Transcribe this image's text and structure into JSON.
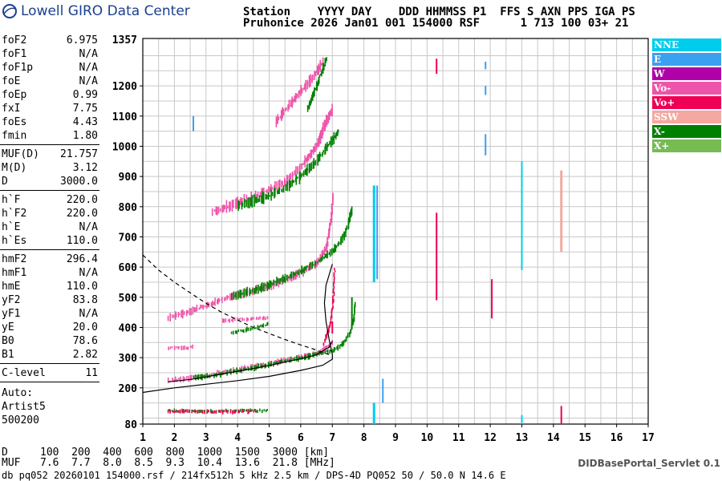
{
  "header": {
    "logo_text": "Lowell GIRO Data Center",
    "line1": "Station    YYYY DAY    DDD HHMMSS P1  FFS S AXN PPS IGA PS",
    "line2": "Pruhonice 2026 Jan01 001 154000 RSF      1 713 100 03+ 21"
  },
  "params_groups": [
    [
      {
        "label": "foF2",
        "value": "6.975"
      },
      {
        "label": "foF1",
        "value": "N/A"
      },
      {
        "label": "foF1p",
        "value": "N/A"
      },
      {
        "label": "foE",
        "value": "N/A"
      },
      {
        "label": "foEp",
        "value": "0.99"
      },
      {
        "label": "fxI",
        "value": "7.75"
      },
      {
        "label": "foEs",
        "value": "4.43"
      },
      {
        "label": "fmin",
        "value": "1.80"
      }
    ],
    [
      {
        "label": "MUF(D)",
        "value": "21.757"
      },
      {
        "label": "M(D)",
        "value": "3.12"
      },
      {
        "label": "D",
        "value": "3000.0"
      }
    ],
    [
      {
        "label": "h`F",
        "value": "220.0"
      },
      {
        "label": "h`F2",
        "value": "220.0"
      },
      {
        "label": "h`E",
        "value": "N/A"
      },
      {
        "label": "h`Es",
        "value": "110.0"
      }
    ],
    [
      {
        "label": "hmF2",
        "value": "296.4"
      },
      {
        "label": "hmF1",
        "value": "N/A"
      },
      {
        "label": "hmE",
        "value": "110.0"
      },
      {
        "label": "yF2",
        "value": "83.8"
      },
      {
        "label": "yF1",
        "value": "N/A"
      },
      {
        "label": "yE",
        "value": "20.0"
      },
      {
        "label": "B0",
        "value": "78.6"
      },
      {
        "label": "B1",
        "value": "2.82"
      }
    ],
    [
      {
        "label": "C-level",
        "value": "11"
      }
    ]
  ],
  "autoscaling": {
    "line1": "Auto:",
    "line2": "Artist5",
    "line3": "500200"
  },
  "chart_data": {
    "type": "scatter",
    "x_ticks": [
      1,
      2,
      3,
      4,
      5,
      6,
      7,
      8,
      9,
      10,
      11,
      12,
      13,
      14,
      15,
      16,
      17
    ],
    "y_ticks": [
      80,
      200,
      300,
      400,
      500,
      600,
      700,
      800,
      900,
      1000,
      1100,
      1200
    ],
    "y_top_label": "1357",
    "xlim": [
      1,
      17
    ],
    "ylim": [
      80,
      1357
    ],
    "grid": true,
    "legend_placement": "right",
    "legend": [
      {
        "name": "NNE",
        "color": "#00ccee"
      },
      {
        "name": "E",
        "color": "#3aa0f0"
      },
      {
        "name": "W",
        "color": "#b000a8"
      },
      {
        "name": "Vo-",
        "color": "#ee55aa"
      },
      {
        "name": "Vo+",
        "color": "#ee0055"
      },
      {
        "name": "SSW",
        "color": "#f4a8a0"
      },
      {
        "name": "X-",
        "color": "#008000"
      },
      {
        "name": "X+",
        "color": "#77bb55"
      }
    ],
    "traces": [
      {
        "color": "#ee55aa",
        "mode": "curve",
        "spread": 6,
        "points": [
          [
            1.8,
            220
          ],
          [
            2.3,
            228
          ],
          [
            3,
            238
          ],
          [
            3.5,
            248
          ],
          [
            4,
            258
          ],
          [
            4.5,
            268
          ],
          [
            5,
            278
          ],
          [
            5.5,
            290
          ],
          [
            6,
            300
          ],
          [
            6.5,
            312
          ],
          [
            6.8,
            330
          ],
          [
            7,
            350
          ]
        ]
      },
      {
        "color": "#ee0055",
        "mode": "curve",
        "spread": 4,
        "points": [
          [
            6.7,
            340
          ],
          [
            6.9,
            400
          ],
          [
            7,
            480
          ],
          [
            7.05,
            560
          ],
          [
            7.05,
            600
          ]
        ]
      },
      {
        "color": "#008000",
        "mode": "curve",
        "spread": 6,
        "points": [
          [
            2.6,
            230
          ],
          [
            3,
            236
          ],
          [
            3.5,
            244
          ],
          [
            4,
            254
          ],
          [
            4.5,
            264
          ],
          [
            5,
            274
          ],
          [
            5.5,
            286
          ],
          [
            6,
            296
          ],
          [
            6.5,
            308
          ],
          [
            7,
            322
          ],
          [
            7.3,
            340
          ],
          [
            7.55,
            380
          ],
          [
            7.65,
            420
          ],
          [
            7.7,
            480
          ]
        ]
      },
      {
        "color": "#ee55aa",
        "mode": "curve",
        "spread": 10,
        "points": [
          [
            1.8,
            430
          ],
          [
            2.3,
            445
          ],
          [
            3,
            470
          ],
          [
            3.5,
            490
          ],
          [
            4,
            505
          ],
          [
            4.5,
            520
          ],
          [
            5,
            535
          ],
          [
            5.5,
            555
          ],
          [
            6,
            580
          ],
          [
            6.5,
            610
          ],
          [
            6.8,
            660
          ],
          [
            6.95,
            760
          ],
          [
            7,
            840
          ]
        ]
      },
      {
        "color": "#008000",
        "mode": "curve",
        "spread": 10,
        "points": [
          [
            3.8,
            500
          ],
          [
            4.5,
            520
          ],
          [
            5,
            540
          ],
          [
            5.5,
            560
          ],
          [
            6,
            585
          ],
          [
            6.5,
            615
          ],
          [
            7,
            650
          ],
          [
            7.3,
            690
          ],
          [
            7.5,
            740
          ],
          [
            7.6,
            790
          ]
        ]
      },
      {
        "color": "#ee55aa",
        "mode": "curve",
        "spread": 14,
        "points": [
          [
            3.2,
            780
          ],
          [
            4,
            810
          ],
          [
            4.5,
            830
          ],
          [
            5,
            855
          ],
          [
            5.5,
            880
          ],
          [
            6,
            930
          ],
          [
            6.5,
            1000
          ],
          [
            6.8,
            1080
          ],
          [
            7,
            1120
          ]
        ]
      },
      {
        "color": "#008000",
        "mode": "curve",
        "spread": 14,
        "points": [
          [
            4,
            800
          ],
          [
            4.5,
            815
          ],
          [
            5,
            835
          ],
          [
            5.5,
            860
          ],
          [
            6,
            900
          ],
          [
            6.5,
            950
          ],
          [
            7,
            1020
          ],
          [
            7.2,
            1050
          ]
        ]
      },
      {
        "color": "#ee55aa",
        "mode": "curve",
        "spread": 14,
        "points": [
          [
            5.2,
            1080
          ],
          [
            5.6,
            1130
          ],
          [
            6,
            1180
          ],
          [
            6.4,
            1230
          ],
          [
            6.7,
            1280
          ]
        ]
      },
      {
        "color": "#008000",
        "mode": "curve",
        "spread": 10,
        "points": [
          [
            6.2,
            1120
          ],
          [
            6.5,
            1200
          ],
          [
            6.7,
            1260
          ],
          [
            6.8,
            1290
          ]
        ]
      },
      {
        "color": "#ee55aa",
        "mode": "curve",
        "spread": 4,
        "points": [
          [
            1.8,
            330
          ],
          [
            2.2,
            330
          ],
          [
            2.6,
            332
          ]
        ]
      },
      {
        "color": "#ee55aa",
        "mode": "curve",
        "spread": 4,
        "points": [
          [
            3.5,
            420
          ],
          [
            4.2,
            425
          ],
          [
            5,
            428
          ]
        ]
      },
      {
        "color": "#008000",
        "mode": "curve",
        "spread": 4,
        "points": [
          [
            3.8,
            380
          ],
          [
            4.5,
            395
          ],
          [
            5,
            410
          ]
        ]
      },
      {
        "color": "#008000",
        "mode": "curve",
        "spread": 3,
        "points": [
          [
            1.8,
            122
          ],
          [
            3,
            120
          ],
          [
            4,
            121
          ],
          [
            5,
            122
          ]
        ]
      },
      {
        "color": "#ee0055",
        "mode": "curve",
        "spread": 3,
        "points": [
          [
            1.8,
            120
          ],
          [
            3.5,
            118
          ],
          [
            4.6,
            119
          ]
        ]
      },
      {
        "color": "#00ccee",
        "mode": "vline",
        "x": 8.32,
        "y0": 550,
        "y1": 870,
        "w": 3
      },
      {
        "color": "#3aa0f0",
        "mode": "vline",
        "x": 8.42,
        "y0": 560,
        "y1": 870,
        "w": 2
      },
      {
        "color": "#00ccee",
        "mode": "vline",
        "x": 8.32,
        "y0": 80,
        "y1": 150,
        "w": 3
      },
      {
        "color": "#ee0055",
        "mode": "vline",
        "x": 10.3,
        "y0": 490,
        "y1": 780,
        "w": 2
      },
      {
        "color": "#ee0055",
        "mode": "vline",
        "x": 10.3,
        "y0": 1240,
        "y1": 1290,
        "w": 2
      },
      {
        "color": "#ee0055",
        "mode": "vline",
        "x": 12.05,
        "y0": 430,
        "y1": 560,
        "w": 2
      },
      {
        "color": "#3aa0f0",
        "mode": "vline",
        "x": 11.85,
        "y0": 970,
        "y1": 1040,
        "w": 2
      },
      {
        "color": "#3aa0f0",
        "mode": "vline",
        "x": 11.85,
        "y0": 1170,
        "y1": 1200,
        "w": 2
      },
      {
        "color": "#3aa0f0",
        "mode": "vline",
        "x": 11.85,
        "y0": 1255,
        "y1": 1280,
        "w": 2
      },
      {
        "color": "#00ccee",
        "mode": "vline",
        "x": 13.0,
        "y0": 590,
        "y1": 950,
        "w": 2
      },
      {
        "color": "#00ccee",
        "mode": "vline",
        "x": 13.0,
        "y0": 80,
        "y1": 110,
        "w": 2
      },
      {
        "color": "#f4a8a0",
        "mode": "vline",
        "x": 14.25,
        "y0": 650,
        "y1": 920,
        "w": 3
      },
      {
        "color": "#ee0055",
        "mode": "vline",
        "x": 14.25,
        "y0": 80,
        "y1": 140,
        "w": 2
      },
      {
        "color": "#3aa0f0",
        "mode": "vline",
        "x": 2.6,
        "y0": 1050,
        "y1": 1100,
        "w": 2
      },
      {
        "color": "#3aa0f0",
        "mode": "vline",
        "x": 8.6,
        "y0": 150,
        "y1": 230,
        "w": 2
      },
      {
        "color": "#008000",
        "mode": "vline",
        "x": 7.62,
        "y0": 400,
        "y1": 500,
        "w": 2
      },
      {
        "color": "#ee0055",
        "mode": "vline",
        "x": 7.0,
        "y0": 380,
        "y1": 420,
        "w": 2
      }
    ],
    "profile_line": [
      [
        1,
        185
      ],
      [
        2,
        200
      ],
      [
        3,
        212
      ],
      [
        4,
        224
      ],
      [
        5,
        238
      ],
      [
        6,
        258
      ],
      [
        6.7,
        275
      ],
      [
        7,
        295
      ],
      [
        7,
        310
      ],
      [
        6.9,
        360
      ],
      [
        6.8,
        420
      ],
      [
        6.75,
        480
      ],
      [
        6.8,
        540
      ],
      [
        7.0,
        610
      ]
    ],
    "profile_lower": [
      [
        1.8,
        220
      ],
      [
        2.5,
        228
      ],
      [
        3,
        236
      ],
      [
        3.5,
        246
      ],
      [
        4,
        255
      ],
      [
        4.5,
        264
      ],
      [
        5,
        274
      ],
      [
        5.5,
        286
      ],
      [
        6,
        296
      ],
      [
        6.5,
        310
      ],
      [
        6.9,
        335
      ],
      [
        7.0,
        355
      ]
    ],
    "profile_dashed": [
      [
        1,
        640
      ],
      [
        1.5,
        590
      ],
      [
        2,
        550
      ],
      [
        2.5,
        515
      ],
      [
        3,
        480
      ],
      [
        3.5,
        450
      ],
      [
        4,
        425
      ],
      [
        4.5,
        400
      ],
      [
        5,
        380
      ],
      [
        5.5,
        360
      ],
      [
        6,
        342
      ],
      [
        6.5,
        325
      ],
      [
        6.9,
        310
      ]
    ]
  },
  "mufs": {
    "d_label": "D",
    "d_values": "100  200  400  600  800  1000  1500  3000 [km]",
    "muf_label": "MUF",
    "muf_values": "7.6  7.7  8.0  8.5  9.3  10.4  13.6  21.8 [MHz]"
  },
  "footer": {
    "file_line": "db pq052 20260101 154000.rsf / 214fx512h 5 kHz 2.5 km / DPS-4D PQ052 50 / 50.0 N 14.6 E",
    "servlet": "DIDBasePortal_Servlet 0.1"
  }
}
